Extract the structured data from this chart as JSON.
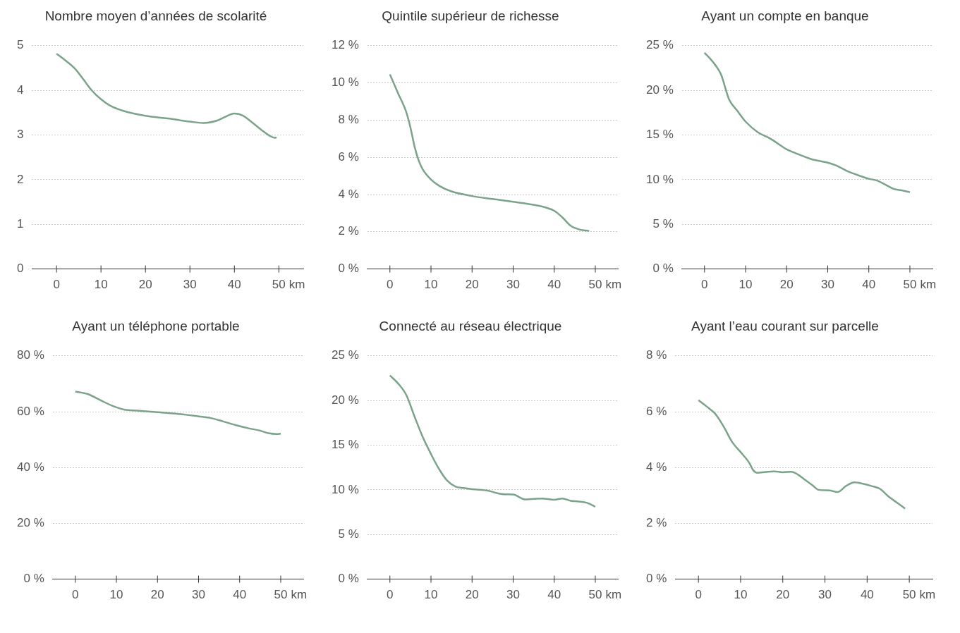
{
  "chart_data": [
    {
      "type": "line",
      "title": "Nombre moyen d’années de scolarité",
      "color": "#7aa38a",
      "grid": "y",
      "x": [
        0,
        2,
        4,
        6,
        8,
        10,
        12,
        15,
        20,
        25,
        30,
        33,
        36,
        38,
        40,
        42,
        44,
        46,
        48,
        49,
        49.5
      ],
      "values": [
        4.82,
        4.67,
        4.5,
        4.25,
        3.99,
        3.8,
        3.66,
        3.54,
        3.43,
        3.37,
        3.3,
        3.27,
        3.32,
        3.41,
        3.48,
        3.43,
        3.28,
        3.12,
        2.98,
        2.94,
        2.94
      ],
      "xlim": [
        -5.5,
        55.5
      ],
      "xticks": [
        0,
        10,
        20,
        30,
        40,
        50
      ],
      "xlabel": "km",
      "ylim": [
        0,
        5
      ],
      "yticks": [
        0,
        1,
        2,
        3,
        4,
        5
      ]
    },
    {
      "type": "line",
      "title": "Quintile supérieur de richesse",
      "color": "#7aa38a",
      "grid": "y",
      "x": [
        0,
        2,
        4,
        5,
        6,
        7,
        8,
        10,
        12,
        15,
        20,
        25,
        30,
        35,
        38,
        40,
        42,
        44,
        46,
        48.5
      ],
      "values": [
        10.46,
        9.44,
        8.42,
        7.6,
        6.58,
        5.83,
        5.35,
        4.81,
        4.47,
        4.17,
        3.92,
        3.76,
        3.61,
        3.45,
        3.3,
        3.13,
        2.77,
        2.32,
        2.13,
        2.04
      ],
      "xlim": [
        -5.5,
        55.5
      ],
      "xticks": [
        0,
        10,
        20,
        30,
        40,
        50
      ],
      "xlabel": "km",
      "ylim": [
        0,
        12
      ],
      "yticks": [
        {
          "value": 0,
          "label": "0 %"
        },
        {
          "value": 2,
          "label": "2 %"
        },
        {
          "value": 4,
          "label": "4 %"
        },
        {
          "value": 6,
          "label": "6 %"
        },
        {
          "value": 8,
          "label": "8 %"
        },
        {
          "value": 10,
          "label": "10 %"
        },
        {
          "value": 12,
          "label": "12 %"
        }
      ]
    },
    {
      "type": "line",
      "title": "Ayant un compte en banque",
      "color": "#7aa38a",
      "grid": "y",
      "x": [
        0,
        2,
        4,
        6,
        8,
        10,
        13,
        16,
        20,
        22,
        26,
        30,
        32,
        35,
        38,
        40,
        42,
        44,
        46,
        48,
        50
      ],
      "values": [
        24.2,
        23.2,
        21.8,
        18.96,
        17.7,
        16.5,
        15.3,
        14.6,
        13.4,
        13.0,
        12.3,
        11.9,
        11.6,
        10.9,
        10.4,
        10.1,
        9.9,
        9.45,
        8.97,
        8.8,
        8.6
      ],
      "xlim": [
        -5.5,
        55.5
      ],
      "xticks": [
        0,
        10,
        20,
        30,
        40,
        50
      ],
      "xlabel": "km",
      "ylim": [
        0,
        25
      ],
      "yticks": [
        {
          "value": 0,
          "label": "0 %"
        },
        {
          "value": 5,
          "label": "5 %"
        },
        {
          "value": 10,
          "label": "10 %"
        },
        {
          "value": 15,
          "label": "15 %"
        },
        {
          "value": 20,
          "label": "20 %"
        },
        {
          "value": 25,
          "label": "25 %"
        }
      ]
    },
    {
      "type": "line",
      "title": "Ayant un téléphone portable",
      "color": "#7aa38a",
      "grid": "y",
      "x": [
        0,
        3,
        6,
        9,
        12,
        15,
        20,
        25,
        30,
        33,
        36,
        39,
        42,
        45,
        47,
        49,
        50
      ],
      "values": [
        67.2,
        66.3,
        64.2,
        62.1,
        60.7,
        60.4,
        59.8,
        59.2,
        58.3,
        57.7,
        56.5,
        55.2,
        54.1,
        53.2,
        52.3,
        52.0,
        52.1
      ],
      "xlim": [
        -5.5,
        55.5
      ],
      "xticks": [
        0,
        10,
        20,
        30,
        40,
        50
      ],
      "xlabel": "km",
      "ylim": [
        0,
        80
      ],
      "yticks": [
        {
          "value": 0,
          "label": "0 %"
        },
        {
          "value": 20,
          "label": "20 %"
        },
        {
          "value": 40,
          "label": "40 %"
        },
        {
          "value": 60,
          "label": "60 %"
        },
        {
          "value": 80,
          "label": "80 %"
        }
      ]
    },
    {
      "type": "line",
      "title": "Connecté au réseau électrique",
      "color": "#7aa38a",
      "grid": "y",
      "x": [
        0,
        2,
        4,
        6,
        8,
        10,
        12,
        14,
        16,
        18,
        20,
        24,
        26,
        28,
        30,
        33,
        37,
        40,
        42,
        44,
        46,
        48,
        50
      ],
      "values": [
        22.8,
        21.9,
        20.6,
        18.2,
        15.9,
        14.0,
        12.3,
        11.0,
        10.36,
        10.2,
        10.07,
        9.9,
        9.64,
        9.5,
        9.47,
        8.92,
        9.03,
        8.89,
        9.03,
        8.77,
        8.69,
        8.54,
        8.11
      ],
      "xlim": [
        -5.5,
        55.5
      ],
      "xticks": [
        0,
        10,
        20,
        30,
        40,
        50
      ],
      "xlabel": "km",
      "ylim": [
        0,
        25
      ],
      "yticks": [
        {
          "value": 0,
          "label": "0 %"
        },
        {
          "value": 5,
          "label": "5 %"
        },
        {
          "value": 10,
          "label": "10 %"
        },
        {
          "value": 15,
          "label": "15 %"
        },
        {
          "value": 20,
          "label": "20 %"
        },
        {
          "value": 25,
          "label": "25 %"
        }
      ]
    },
    {
      "type": "line",
      "title": "Ayant l’eau courant sur parcelle",
      "color": "#7aa38a",
      "grid": "y",
      "x": [
        0,
        2,
        4,
        6,
        8,
        10,
        12,
        13,
        14,
        16,
        18,
        20,
        22,
        23,
        25,
        27,
        28.5,
        31,
        33,
        35,
        37,
        39,
        41,
        43,
        45,
        47,
        49
      ],
      "values": [
        6.41,
        6.18,
        5.92,
        5.46,
        4.91,
        4.55,
        4.18,
        3.9,
        3.81,
        3.84,
        3.86,
        3.83,
        3.85,
        3.8,
        3.59,
        3.37,
        3.2,
        3.18,
        3.12,
        3.34,
        3.47,
        3.42,
        3.34,
        3.24,
        2.97,
        2.75,
        2.53
      ],
      "xlim": [
        -5.5,
        55.5
      ],
      "xticks": [
        0,
        10,
        20,
        30,
        40,
        50
      ],
      "xlabel": "km",
      "ylim": [
        0,
        8
      ],
      "yticks": [
        {
          "value": 0,
          "label": "0 %"
        },
        {
          "value": 2,
          "label": "2 %"
        },
        {
          "value": 4,
          "label": "4 %"
        },
        {
          "value": 6,
          "label": "6 %"
        },
        {
          "value": 8,
          "label": "8 %"
        }
      ]
    }
  ]
}
